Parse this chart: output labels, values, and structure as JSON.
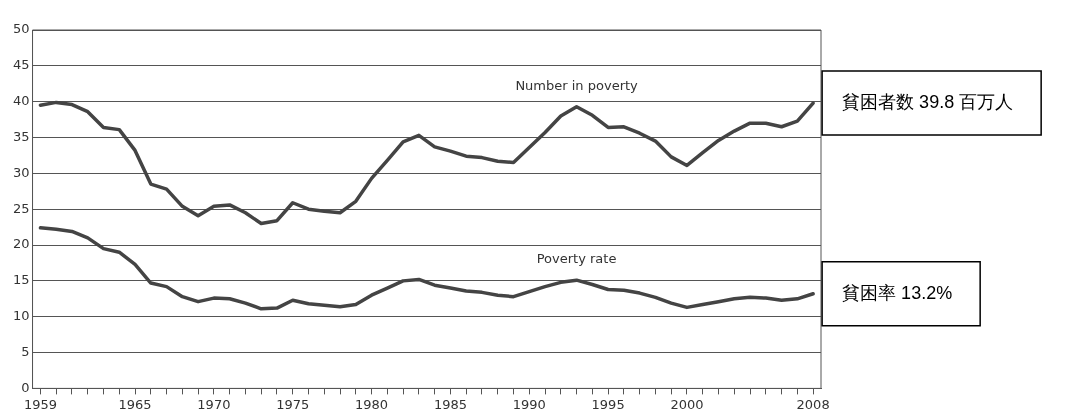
{
  "chart_data": {
    "type": "line",
    "x": [
      1959,
      1960,
      1961,
      1962,
      1963,
      1964,
      1965,
      1966,
      1967,
      1968,
      1969,
      1970,
      1971,
      1972,
      1973,
      1974,
      1975,
      1976,
      1977,
      1978,
      1979,
      1980,
      1981,
      1982,
      1983,
      1984,
      1985,
      1986,
      1987,
      1988,
      1989,
      1990,
      1991,
      1992,
      1993,
      1994,
      1995,
      1996,
      1997,
      1998,
      1999,
      2000,
      2001,
      2002,
      2003,
      2004,
      2005,
      2006,
      2007,
      2008
    ],
    "series": [
      {
        "name": "Number in poverty",
        "color": "#444444",
        "values": [
          39.5,
          39.9,
          39.6,
          38.6,
          36.4,
          36.1,
          33.2,
          28.5,
          27.8,
          25.4,
          24.1,
          25.4,
          25.6,
          24.5,
          23.0,
          23.4,
          25.9,
          25.0,
          24.7,
          24.5,
          26.1,
          29.3,
          31.8,
          34.4,
          35.3,
          33.7,
          33.1,
          32.4,
          32.2,
          31.7,
          31.5,
          33.6,
          35.7,
          38.0,
          39.3,
          38.1,
          36.4,
          36.5,
          35.6,
          34.5,
          32.3,
          31.1,
          32.9,
          34.6,
          35.9,
          37.0,
          37.0,
          36.5,
          37.3,
          39.8
        ]
      },
      {
        "name": "Poverty rate",
        "color": "#444444",
        "values": [
          22.4,
          22.2,
          21.9,
          21.0,
          19.5,
          19.0,
          17.3,
          14.7,
          14.2,
          12.8,
          12.1,
          12.6,
          12.5,
          11.9,
          11.1,
          11.2,
          12.3,
          11.8,
          11.6,
          11.4,
          11.7,
          13.0,
          14.0,
          15.0,
          15.2,
          14.4,
          14.0,
          13.6,
          13.4,
          13.0,
          12.8,
          13.5,
          14.2,
          14.8,
          15.1,
          14.5,
          13.8,
          13.7,
          13.3,
          12.7,
          11.9,
          11.3,
          11.7,
          12.1,
          12.5,
          12.7,
          12.6,
          12.3,
          12.5,
          13.2
        ]
      }
    ],
    "xlim": [
      1958.5,
      2008.5
    ],
    "xticks": [
      1959,
      {
        "value": 1960,
        "label": null
      },
      {
        "value": 1961,
        "label": null
      },
      {
        "value": 1962,
        "label": null
      },
      {
        "value": 1963,
        "label": null
      },
      {
        "value": 1964,
        "label": null
      },
      1965,
      {
        "value": 1966,
        "label": null
      },
      {
        "value": 1967,
        "label": null
      },
      {
        "value": 1968,
        "label": null
      },
      {
        "value": 1969,
        "label": null
      },
      1970,
      {
        "value": 1971,
        "label": null
      },
      {
        "value": 1972,
        "label": null
      },
      {
        "value": 1973,
        "label": null
      },
      {
        "value": 1974,
        "label": null
      },
      1975,
      {
        "value": 1976,
        "label": null
      },
      {
        "value": 1977,
        "label": null
      },
      {
        "value": 1978,
        "label": null
      },
      {
        "value": 1979,
        "label": null
      },
      1980,
      {
        "value": 1981,
        "label": null
      },
      {
        "value": 1982,
        "label": null
      },
      {
        "value": 1983,
        "label": null
      },
      {
        "value": 1984,
        "label": null
      },
      1985,
      {
        "value": 1986,
        "label": null
      },
      {
        "value": 1987,
        "label": null
      },
      {
        "value": 1988,
        "label": null
      },
      {
        "value": 1989,
        "label": null
      },
      1990,
      {
        "value": 1991,
        "label": null
      },
      {
        "value": 1992,
        "label": null
      },
      {
        "value": 1993,
        "label": null
      },
      {
        "value": 1994,
        "label": null
      },
      1995,
      {
        "value": 1996,
        "label": null
      },
      {
        "value": 1997,
        "label": null
      },
      {
        "value": 1998,
        "label": null
      },
      {
        "value": 1999,
        "label": null
      },
      2000,
      {
        "value": 2001,
        "label": null
      },
      {
        "value": 2002,
        "label": null
      },
      {
        "value": 2003,
        "label": null
      },
      {
        "value": 2004,
        "label": null
      },
      {
        "value": 2005,
        "label": null
      },
      {
        "value": 2006,
        "label": null
      },
      {
        "value": 2007,
        "label": null
      },
      2008
    ],
    "ylim": [
      0,
      50
    ],
    "yticks": [
      0,
      5,
      10,
      15,
      20,
      25,
      30,
      35,
      40,
      45,
      50
    ],
    "grid": "y",
    "legend": false,
    "marker": "none",
    "line_style": "solid",
    "annotations": [
      {
        "text": "貧困者数 39.8 百万人",
        "x": 2008,
        "y": 39.8
      },
      {
        "text": "貧困率 13.2%",
        "x": 2008,
        "y": 13.2
      }
    ]
  }
}
